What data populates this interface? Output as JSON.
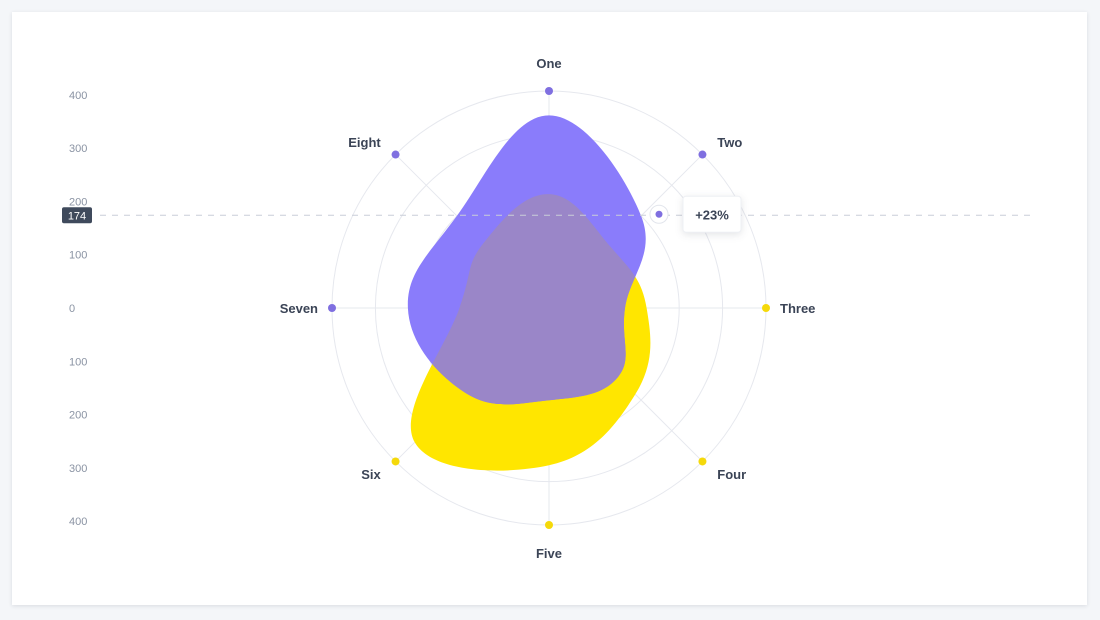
{
  "chart_data": {
    "type": "radar",
    "categories": [
      "One",
      "Two",
      "Three",
      "Four",
      "Five",
      "Six",
      "Seven",
      "Eight"
    ],
    "series": [
      {
        "values": [
          355,
          240,
          140,
          180,
          170,
          220,
          260,
          240
        ]
      },
      {
        "values": [
          210,
          160,
          180,
          225,
          290,
          350,
          165,
          170
        ]
      }
    ],
    "y_ticks": [
      "400",
      "300",
      "200",
      "100",
      "0",
      "100",
      "200",
      "300",
      "400"
    ],
    "radial_range": [
      0,
      400
    ],
    "reference": {
      "value": 174,
      "label": "174"
    },
    "tooltip": {
      "text": "+23%",
      "category": "Two"
    },
    "grid": true,
    "colors": {
      "series_1": "#8a7cfb",
      "series_2": "#ffe600",
      "overlap": "#9a86c8",
      "axis_marker_series_1": "#7f6fe0",
      "axis_marker_series_2": "#f5d90a",
      "grid": "#e6e8ee"
    }
  }
}
